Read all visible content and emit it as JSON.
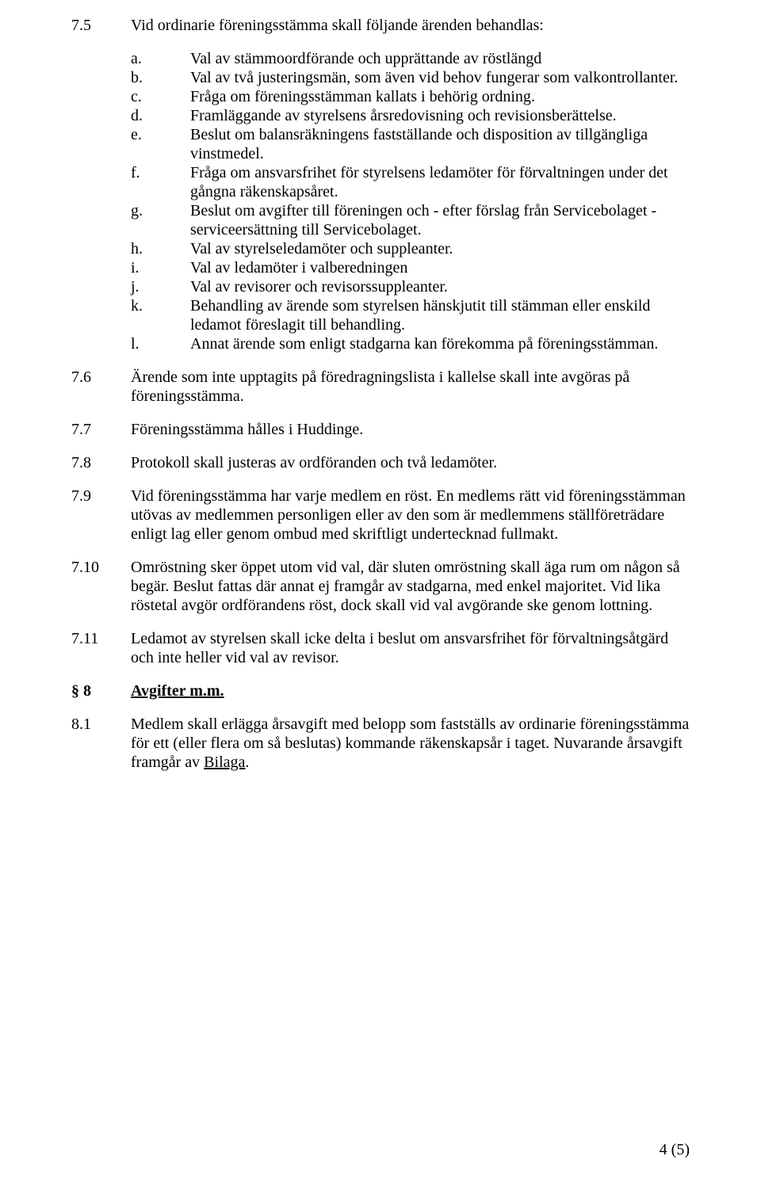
{
  "section75": {
    "num": "7.5",
    "intro": "Vid ordinarie föreningsstämma skall följande ärenden behandlas:",
    "items": [
      {
        "letter": "a.",
        "text": "Val av stämmoordförande och upprättande av röstlängd"
      },
      {
        "letter": "b.",
        "text": "Val av två justeringsmän, som även vid behov fungerar som valkontrollanter."
      },
      {
        "letter": "c.",
        "text": "Fråga om föreningsstämman kallats i behörig ordning."
      },
      {
        "letter": "d.",
        "text": "Framläggande av styrelsens årsredovisning och revisionsberättelse."
      },
      {
        "letter": "e.",
        "text": "Beslut om balansräkningens fastställande och disposition av tillgängliga vinstmedel."
      },
      {
        "letter": "f.",
        "text": "Fråga om ansvarsfrihet för styrelsens ledamöter för förvaltningen under det gångna räkenskapsåret."
      },
      {
        "letter": "g.",
        "text": "Beslut om avgifter till föreningen och - efter förslag från Servicebolaget - serviceersättning till Servicebolaget."
      },
      {
        "letter": "h.",
        "text": "Val av styrelseledamöter och suppleanter."
      },
      {
        "letter": "i.",
        "text": "Val av ledamöter i valberedningen"
      },
      {
        "letter": "j.",
        "text": "Val av revisorer och revisorssuppleanter."
      },
      {
        "letter": "k.",
        "text": "Behandling av ärende som styrelsen hänskjutit till stämman eller enskild ledamot föreslagit till behandling."
      },
      {
        "letter": "l.",
        "text": "Annat ärende som enligt stadgarna kan förekomma på föreningsstämman."
      }
    ]
  },
  "section76": {
    "num": "7.6",
    "text": "Ärende som inte upptagits på föredragningslista i kallelse skall inte avgöras på föreningsstämma."
  },
  "section77": {
    "num": "7.7",
    "text": "Föreningsstämma hålles i Huddinge."
  },
  "section78": {
    "num": "7.8",
    "text": "Protokoll skall justeras av ordföranden och två ledamöter."
  },
  "section79": {
    "num": "7.9",
    "text": "Vid föreningsstämma har varje medlem en röst. En medlems rätt vid föreningsstämman utövas av medlemmen personligen eller av den som är medlemmens ställföreträdare enligt lag eller genom ombud med skriftligt undertecknad fullmakt."
  },
  "section710": {
    "num": "7.10",
    "text": "Omröstning sker öppet utom vid val, där sluten omröstning skall äga rum om någon så begär. Beslut fattas där annat ej framgår av stadgarna, med enkel majoritet. Vid lika röstetal avgör ordförandens röst, dock skall vid val avgörande ske genom lottning."
  },
  "section711": {
    "num": "7.11",
    "text": "Ledamot av styrelsen skall icke delta i beslut om ansvarsfrihet för förvaltningsåtgärd och inte heller vid val av revisor."
  },
  "section8": {
    "num": "§ 8",
    "title": "Avgifter m.m."
  },
  "section81": {
    "num": "8.1",
    "text_pre": "Medlem skall erlägga årsavgift med belopp som fastställs av ordinarie föreningsstämma för ett (eller flera om så beslutas) kommande räkenskapsår i taget. Nuvarande årsavgift framgår av ",
    "bilaga": "Bilaga",
    "text_post": "."
  },
  "pageNumber": "4 (5)"
}
